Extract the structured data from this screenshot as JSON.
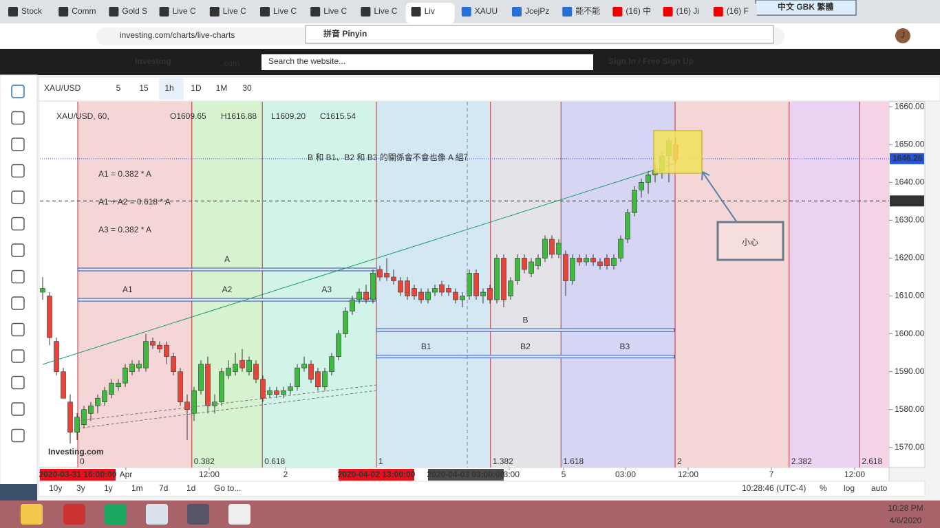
{
  "browser": {
    "tabs": [
      "Stock",
      "Comm",
      "Gold S",
      "Live C",
      "Live C",
      "Live C",
      "Live C",
      "Live C",
      "Liv",
      "XAUU",
      "JcejPz",
      "能不能",
      "(16) 中",
      "(16) Ji",
      "(16) F"
    ],
    "url": "investing.com/charts/live-charts",
    "ime": "中文 GBK 繁體",
    "ime_bar": "拼音 Pinyin",
    "profile": "J"
  },
  "site": {
    "logo": "Investing",
    "logo_suffix": ".com",
    "search": "Search the website...",
    "signin": "Sign In / Free Sign Up"
  },
  "toolbar": {
    "symbol": "XAU/USD",
    "intervals": [
      "5",
      "15",
      "1h",
      "1D",
      "1M",
      "30"
    ]
  },
  "legend": {
    "title": "XAU/USD, 60,",
    "ohlc": [
      "O1609.65",
      "H1616.88",
      "L1609.20",
      "C1615.54"
    ]
  },
  "annotations": {
    "formulas": [
      "A1 = 0.382 * A",
      "A1 + A2 = 0.618 * A",
      "A3 = 0.382 * A"
    ],
    "question": "B 和 B1、B2 和 B3 的關係會不會也像 A 組？",
    "caution": "小心",
    "watermark": "Investing.com"
  },
  "chart_data": {
    "type": "candlestick",
    "up_color": "#3fb93f",
    "down_color": "#e8443a",
    "candles": [
      [
        1611,
        1615,
        1609,
        1612
      ],
      [
        1610,
        1611,
        1597,
        1599
      ],
      [
        1598,
        1599,
        1589,
        1590
      ],
      [
        1590,
        1591,
        1583,
        1583
      ],
      [
        1582,
        1584,
        1571,
        1574
      ],
      [
        1574,
        1579,
        1572,
        1578
      ],
      [
        1576,
        1581,
        1575,
        1580
      ],
      [
        1579,
        1582,
        1577,
        1581
      ],
      [
        1581,
        1584,
        1579,
        1583
      ],
      [
        1582,
        1586,
        1581,
        1585
      ],
      [
        1584,
        1588,
        1583,
        1587
      ],
      [
        1586,
        1588,
        1585,
        1587
      ],
      [
        1587,
        1592,
        1586,
        1591
      ],
      [
        1590,
        1593,
        1589,
        1592
      ],
      [
        1591,
        1593,
        1590,
        1592
      ],
      [
        1591,
        1600,
        1590,
        1598
      ],
      [
        1598,
        1599,
        1596,
        1597
      ],
      [
        1597,
        1598,
        1595,
        1596
      ],
      [
        1597,
        1598,
        1592,
        1594
      ],
      [
        1594,
        1595,
        1589,
        1590
      ],
      [
        1590,
        1591,
        1581,
        1582
      ],
      [
        1582,
        1584,
        1572,
        1580
      ],
      [
        1579,
        1586,
        1577,
        1585
      ],
      [
        1585,
        1593,
        1584,
        1592
      ],
      [
        1592,
        1594,
        1579,
        1581
      ],
      [
        1581,
        1584,
        1579,
        1582
      ],
      [
        1582,
        1591,
        1581,
        1590
      ],
      [
        1589,
        1593,
        1588,
        1591
      ],
      [
        1590,
        1595,
        1589,
        1592
      ],
      [
        1593,
        1596,
        1590,
        1591
      ],
      [
        1590,
        1594,
        1589,
        1593
      ],
      [
        1592,
        1593,
        1587,
        1588
      ],
      [
        1588,
        1589,
        1582,
        1583
      ],
      [
        1584,
        1586,
        1583,
        1585
      ],
      [
        1585,
        1586,
        1583,
        1584
      ],
      [
        1584,
        1586,
        1583,
        1585
      ],
      [
        1585,
        1587,
        1584,
        1586
      ],
      [
        1586,
        1592,
        1585,
        1591
      ],
      [
        1591,
        1594,
        1590,
        1592
      ],
      [
        1592,
        1593,
        1587,
        1588
      ],
      [
        1590,
        1591,
        1585,
        1586
      ],
      [
        1586,
        1591,
        1585,
        1590
      ],
      [
        1590,
        1595,
        1589,
        1594
      ],
      [
        1594,
        1601,
        1593,
        1600
      ],
      [
        1600,
        1607,
        1599,
        1606
      ],
      [
        1606,
        1610,
        1605,
        1609
      ],
      [
        1609,
        1612,
        1608,
        1611
      ],
      [
        1611,
        1613,
        1608,
        1609
      ],
      [
        1609,
        1617,
        1608,
        1616
      ],
      [
        1617,
        1618,
        1614,
        1615
      ],
      [
        1616,
        1620,
        1614,
        1615
      ],
      [
        1615,
        1617,
        1613,
        1614
      ],
      [
        1614,
        1615,
        1610,
        1611
      ],
      [
        1614,
        1615,
        1609,
        1610
      ],
      [
        1612,
        1613,
        1609,
        1610
      ],
      [
        1611,
        1612,
        1608,
        1609
      ],
      [
        1609,
        1612,
        1608,
        1611
      ],
      [
        1611,
        1613,
        1610,
        1612
      ],
      [
        1613,
        1614,
        1610,
        1611
      ],
      [
        1612,
        1613,
        1610,
        1611
      ],
      [
        1611,
        1612,
        1608,
        1609
      ],
      [
        1609,
        1611,
        1607,
        1610
      ],
      [
        1610,
        1617,
        1609,
        1616
      ],
      [
        1616,
        1617,
        1609,
        1610
      ],
      [
        1610,
        1612,
        1608,
        1611
      ],
      [
        1612,
        1613,
        1608,
        1609
      ],
      [
        1609,
        1621,
        1608,
        1620
      ],
      [
        1620,
        1621,
        1607,
        1609
      ],
      [
        1610,
        1615,
        1609,
        1614
      ],
      [
        1614,
        1621,
        1613,
        1620
      ],
      [
        1620,
        1621,
        1616,
        1617
      ],
      [
        1616,
        1620,
        1615,
        1619
      ],
      [
        1618,
        1621,
        1617,
        1620
      ],
      [
        1620,
        1626,
        1619,
        1625
      ],
      [
        1625,
        1626,
        1620,
        1621
      ],
      [
        1621,
        1625,
        1620,
        1624
      ],
      [
        1621,
        1622,
        1610,
        1614
      ],
      [
        1614,
        1621,
        1613,
        1620
      ],
      [
        1620,
        1621,
        1618,
        1619
      ],
      [
        1619,
        1621,
        1618,
        1620
      ],
      [
        1620,
        1621,
        1618,
        1619
      ],
      [
        1619,
        1620,
        1617,
        1618
      ],
      [
        1620,
        1621,
        1617,
        1618
      ],
      [
        1618,
        1621,
        1617,
        1620
      ],
      [
        1620,
        1626,
        1619,
        1625
      ],
      [
        1625,
        1633,
        1624,
        1632
      ],
      [
        1632,
        1639,
        1631,
        1638
      ],
      [
        1638,
        1641,
        1636,
        1640
      ],
      [
        1640,
        1643,
        1637,
        1642
      ],
      [
        1642,
        1645,
        1640,
        1643
      ],
      [
        1643,
        1648,
        1641,
        1647
      ],
      [
        1647,
        1652,
        1640,
        1651
      ],
      [
        1650,
        1652,
        1645,
        1646
      ]
    ],
    "xlim": [
      -0.4,
      123
    ],
    "ylim": [
      1564.7,
      1661.3
    ],
    "xticks": [
      {
        "value": 12.1,
        "label": "Apr"
      },
      {
        "value": 24.2,
        "label": "12:00"
      },
      {
        "value": 35.3,
        "label": "2"
      },
      {
        "value": 67.8,
        "label": "03:00"
      },
      {
        "value": 75.7,
        "label": "5"
      },
      {
        "value": 84.7,
        "label": "03:00"
      },
      {
        "value": 93.8,
        "label": "12:00"
      },
      {
        "value": 105.9,
        "label": "7"
      },
      {
        "value": 118,
        "label": "12:00"
      }
    ],
    "yticks": [
      {
        "value": 1570,
        "label": "1570.00"
      },
      {
        "value": 1580,
        "label": "1580.00"
      },
      {
        "value": 1590,
        "label": "1590.00"
      },
      {
        "value": 1600,
        "label": "1600.00"
      },
      {
        "value": 1610,
        "label": "1610.00"
      },
      {
        "value": 1620,
        "label": "1620.00"
      },
      {
        "value": 1630,
        "label": "1630.00"
      },
      {
        "value": 1640,
        "label": "1640.00"
      },
      {
        "value": 1650,
        "label": "1650.00"
      },
      {
        "value": 1660,
        "label": "1660.00"
      }
    ],
    "x_markers": [
      {
        "value": 5.1,
        "label": "2020-03-31 16:00:00",
        "color": "#e8101a"
      },
      {
        "value": 48.5,
        "label": "2020-04-02 13:00:00",
        "color": "#e8101a"
      },
      {
        "value": 61.5,
        "label": "2020-04-03 03:00:00",
        "color": "#4a4a4a"
      }
    ],
    "fib_levels": [
      {
        "value": 0,
        "label": "0",
        "color": "#f4d6d6"
      },
      {
        "value": 0.382,
        "label": "0.382",
        "color": "#d6f2cf"
      },
      {
        "value": 0.618,
        "label": "0.618",
        "color": "#d2f3e7"
      },
      {
        "value": 1,
        "label": "1",
        "color": "#d3e8f3"
      },
      {
        "value": 1.382,
        "label": "1.382",
        "color": "#e3e3e8"
      },
      {
        "value": 1.618,
        "label": "1.618",
        "color": "#d6d5f3"
      },
      {
        "value": 2,
        "label": "2",
        "color": "#f4d6d6"
      },
      {
        "value": 2.382,
        "label": "2.382",
        "color": "#ead3f2"
      },
      {
        "value": 2.618,
        "label": "2.618",
        "color": "#f4d3e6"
      }
    ],
    "levels": [
      {
        "value": 1617,
        "from": 5.1,
        "to": 48.5,
        "labels": [
          "A"
        ]
      },
      {
        "value": 1609,
        "from": 5.1,
        "to": 48.5,
        "labels": [
          "A1",
          "A2",
          "A3"
        ]
      },
      {
        "value": 1601,
        "from": 48.5,
        "to": 91.8,
        "labels": [
          "B"
        ]
      },
      {
        "value": 1594,
        "from": 48.5,
        "to": 91.8,
        "labels": [
          "B1",
          "B2",
          "B3"
        ]
      }
    ],
    "price_lines": [
      {
        "value": 1646.26,
        "label": "1646.26",
        "color": "#2455d8"
      },
      {
        "value": 1635.1,
        "label": "1635.10",
        "color": "#333333"
      }
    ]
  },
  "bottom": {
    "ranges": [
      "10y",
      "3y",
      "1y",
      "1m",
      "7d",
      "1d",
      "Go to..."
    ],
    "time": "10:28:46 (UTC-4)",
    "options": [
      "%",
      "log",
      "auto"
    ]
  },
  "taskbar": {
    "time": "10:28 PM",
    "date": "4/6/2020"
  }
}
